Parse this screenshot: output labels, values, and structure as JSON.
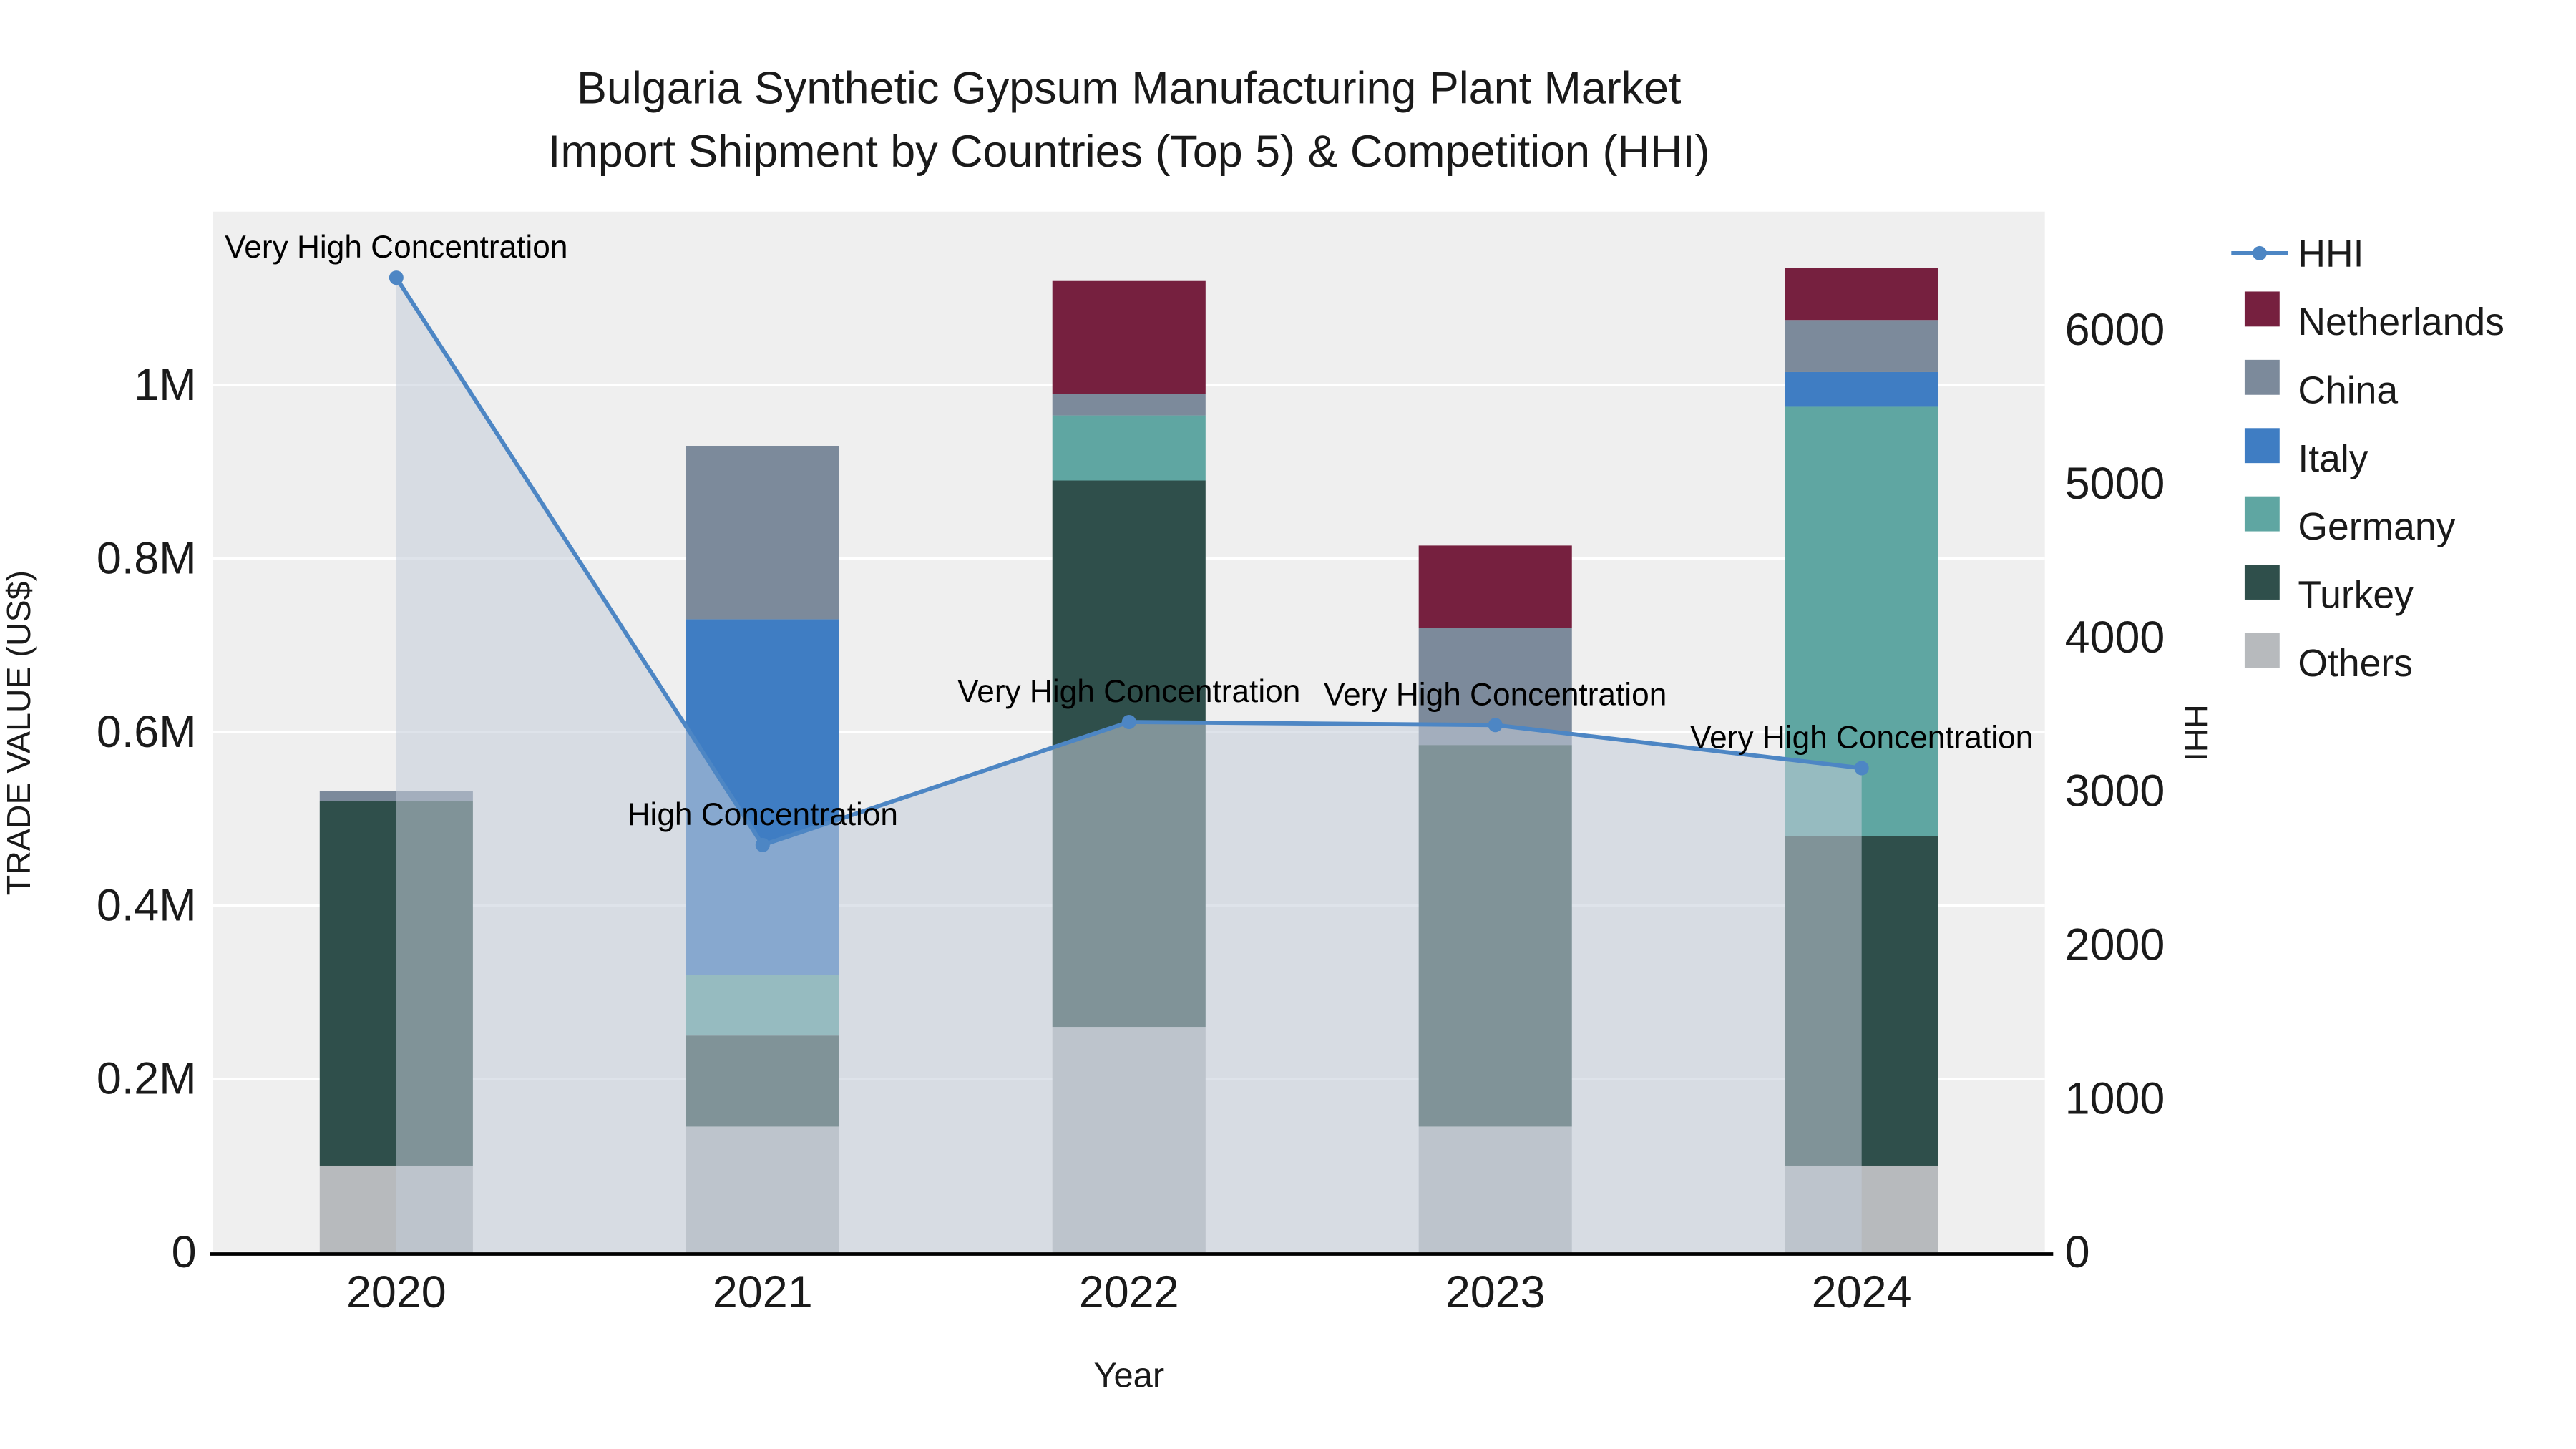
{
  "title": {
    "line1": "Bulgaria Synthetic Gypsum Manufacturing Plant Market",
    "line2": "Import Shipment by Countries (Top 5) & Competition (HHI)"
  },
  "axes": {
    "left_label": "TRADE VALUE (US$)",
    "right_label": "HHI",
    "x_label": "Year",
    "left_ticks": [
      {
        "value": 0,
        "label": "0"
      },
      {
        "value": 200000,
        "label": "0.2M"
      },
      {
        "value": 400000,
        "label": "0.4M"
      },
      {
        "value": 600000,
        "label": "0.6M"
      },
      {
        "value": 800000,
        "label": "0.8M"
      },
      {
        "value": 1000000,
        "label": "1M"
      }
    ],
    "right_ticks": [
      {
        "value": 0,
        "label": "0"
      },
      {
        "value": 1000,
        "label": "1000"
      },
      {
        "value": 2000,
        "label": "2000"
      },
      {
        "value": 3000,
        "label": "3000"
      },
      {
        "value": 4000,
        "label": "4000"
      },
      {
        "value": 5000,
        "label": "5000"
      },
      {
        "value": 6000,
        "label": "6000"
      }
    ]
  },
  "colors": {
    "plot_background": "#efefef",
    "gridline": "#ffffff",
    "axis_line": "#000000",
    "text": "#1a1a1a",
    "hhi_line": "#4d86c4",
    "hhi_area": "#c3ccd8"
  },
  "chart_data": {
    "type": "bar",
    "subtype": "stacked-bars-with-line",
    "title": "Bulgaria Synthetic Gypsum Manufacturing Plant Market Import Shipment by Countries (Top 5) & Competition (HHI)",
    "xlabel": "Year",
    "ylabel_left": "TRADE VALUE (US$)",
    "ylabel_right": "HHI",
    "ylim_left": [
      0,
      1200000
    ],
    "ylim_right": [
      0,
      6770
    ],
    "grid": true,
    "legend_position": "right",
    "categories": [
      "2020",
      "2021",
      "2022",
      "2023",
      "2024"
    ],
    "series": [
      {
        "name": "Others",
        "color": "#b7babd",
        "values": [
          100000,
          145000,
          260000,
          145000,
          100000
        ]
      },
      {
        "name": "Turkey",
        "color": "#2f4f4b",
        "values": [
          420000,
          105000,
          630000,
          440000,
          380000
        ]
      },
      {
        "name": "Germany",
        "color": "#5fa6a2",
        "values": [
          0,
          70000,
          75000,
          0,
          495000
        ]
      },
      {
        "name": "Italy",
        "color": "#3f7dc3",
        "values": [
          0,
          410000,
          0,
          0,
          40000
        ]
      },
      {
        "name": "China",
        "color": "#7c8a9b",
        "values": [
          12000,
          200000,
          25000,
          135000,
          60000
        ]
      },
      {
        "name": "Netherlands",
        "color": "#76203f",
        "values": [
          0,
          0,
          130000,
          95000,
          60000
        ]
      }
    ],
    "line_series": {
      "name": "HHI",
      "axis": "right",
      "color": "#4d86c4",
      "area_color": "#c3ccd8",
      "values": [
        6340,
        2650,
        3450,
        3430,
        3150
      ]
    },
    "annotations": [
      {
        "category": "2020",
        "label": "Very High Concentration"
      },
      {
        "category": "2021",
        "label": "High Concentration"
      },
      {
        "category": "2022",
        "label": "Very High Concentration"
      },
      {
        "category": "2023",
        "label": "Very High Concentration"
      },
      {
        "category": "2024",
        "label": "Very High Concentration"
      }
    ]
  },
  "legend": {
    "items": [
      {
        "label": "HHI",
        "type": "line",
        "color": "#4d86c4"
      },
      {
        "label": "Netherlands",
        "type": "square",
        "color": "#76203f"
      },
      {
        "label": "China",
        "type": "square",
        "color": "#7c8a9b"
      },
      {
        "label": "Italy",
        "type": "square",
        "color": "#3f7dc3"
      },
      {
        "label": "Germany",
        "type": "square",
        "color": "#5fa6a2"
      },
      {
        "label": "Turkey",
        "type": "square",
        "color": "#2f4f4b"
      },
      {
        "label": "Others",
        "type": "square",
        "color": "#b7babd"
      }
    ]
  }
}
